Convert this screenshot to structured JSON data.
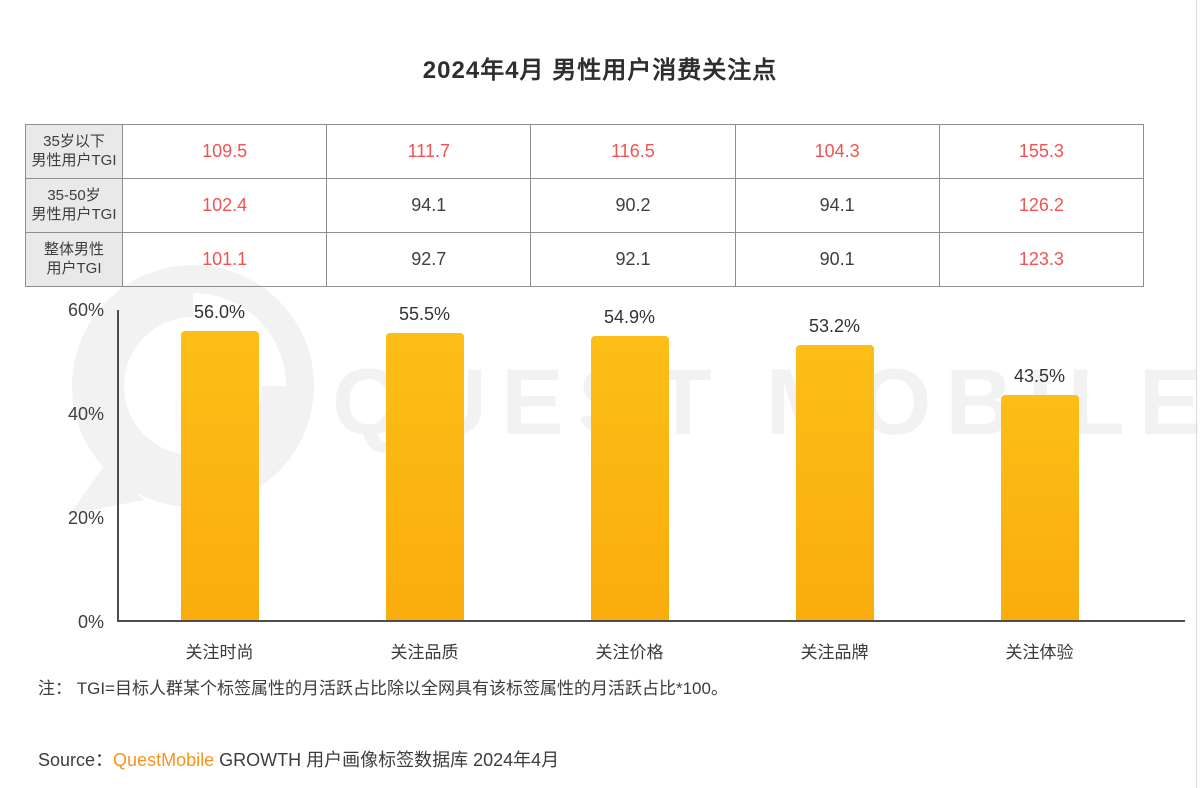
{
  "title": "2024年4月 男性用户消费关注点",
  "watermark": {
    "text": "QUEST MOBILE"
  },
  "table": {
    "rows": [
      {
        "header": "35岁以下\n男性用户TGI",
        "cells": [
          {
            "v": "109.5",
            "red": true
          },
          {
            "v": "111.7",
            "red": true
          },
          {
            "v": "116.5",
            "red": true
          },
          {
            "v": "104.3",
            "red": true
          },
          {
            "v": "155.3",
            "red": true
          }
        ]
      },
      {
        "header": "35-50岁\n男性用户TGI",
        "cells": [
          {
            "v": "102.4",
            "red": true
          },
          {
            "v": "94.1",
            "red": false
          },
          {
            "v": "90.2",
            "red": false
          },
          {
            "v": "94.1",
            "red": false
          },
          {
            "v": "126.2",
            "red": true
          }
        ]
      },
      {
        "header": "整体男性\n用户TGI",
        "cells": [
          {
            "v": "101.1",
            "red": true
          },
          {
            "v": "92.7",
            "red": false
          },
          {
            "v": "92.1",
            "red": false
          },
          {
            "v": "90.1",
            "red": false
          },
          {
            "v": "123.3",
            "red": true
          }
        ]
      }
    ]
  },
  "chart_data": {
    "type": "bar",
    "title": "2024年4月 男性用户消费关注点",
    "categories": [
      "关注时尚",
      "关注品质",
      "关注价格",
      "关注品牌",
      "关注体验"
    ],
    "values": [
      56.0,
      55.5,
      54.9,
      53.2,
      43.5
    ],
    "value_labels": [
      "56.0%",
      "55.5%",
      "54.9%",
      "53.2%",
      "43.5%"
    ],
    "xlabel": "",
    "ylabel": "",
    "ylim": [
      0,
      60
    ],
    "y_ticks": [
      {
        "v": 60,
        "label": "60%"
      },
      {
        "v": 40,
        "label": "40%"
      },
      {
        "v": 20,
        "label": "20%"
      },
      {
        "v": 0,
        "label": "0%"
      }
    ],
    "grid": false,
    "legend": "none",
    "tgi_rows": {
      "35岁以下男性用户TGI": [
        109.5,
        111.7,
        116.5,
        104.3,
        155.3
      ],
      "35-50岁男性用户TGI": [
        102.4,
        94.1,
        90.2,
        94.1,
        126.2
      ],
      "整体男性用户TGI": [
        101.1,
        92.7,
        92.1,
        90.1,
        123.3
      ]
    }
  },
  "note": "注：  TGI=目标人群某个标签属性的月活跃占比除以全网具有该标签属性的月活跃占比*100。",
  "source": {
    "prefix": "Source：",
    "brand": "QuestMobile",
    "rest": " GROWTH 用户画像标签数据库 2024年4月",
    "brand_color": "#F7941D"
  },
  "colors": {
    "bar_top": "#FCBE17",
    "bar_bottom": "#FAAD0E",
    "red": "#F25352",
    "value_text": "#333333",
    "axis": "#4D4D4D"
  }
}
